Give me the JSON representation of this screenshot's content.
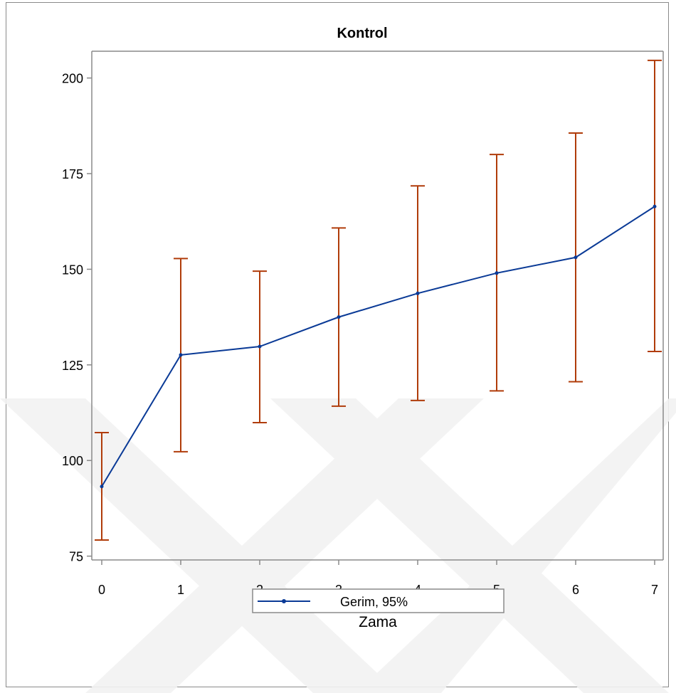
{
  "chart_data": {
    "type": "line",
    "title": "Kontrol",
    "xlabel": "Zama",
    "ylabel": "",
    "x": [
      0,
      1,
      2,
      3,
      4,
      5,
      6,
      7
    ],
    "xlim": [
      -0.1,
      7.1
    ],
    "ylim": [
      74,
      207
    ],
    "xticks": [
      "0",
      "1",
      "2",
      "3",
      "4",
      "5",
      "6",
      "7"
    ],
    "yticks": [
      "75",
      "100",
      "125",
      "150",
      "175",
      "200"
    ],
    "series": [
      {
        "name": "Gerim, 95%",
        "values": [
          93.2,
          127.6,
          129.8,
          137.5,
          143.7,
          149.0,
          153.1,
          166.4
        ],
        "ci_lower": [
          79.2,
          102.3,
          109.9,
          114.2,
          115.7,
          118.2,
          120.6,
          128.5
        ],
        "ci_upper": [
          107.3,
          152.8,
          149.5,
          160.8,
          171.8,
          180.0,
          185.6,
          204.6
        ],
        "color": "#0a3a96",
        "errorbar_color": "#b03c0a"
      }
    ],
    "legend": {
      "position": "bottom-center",
      "label": "Gerim, 95%"
    },
    "grid": false
  }
}
